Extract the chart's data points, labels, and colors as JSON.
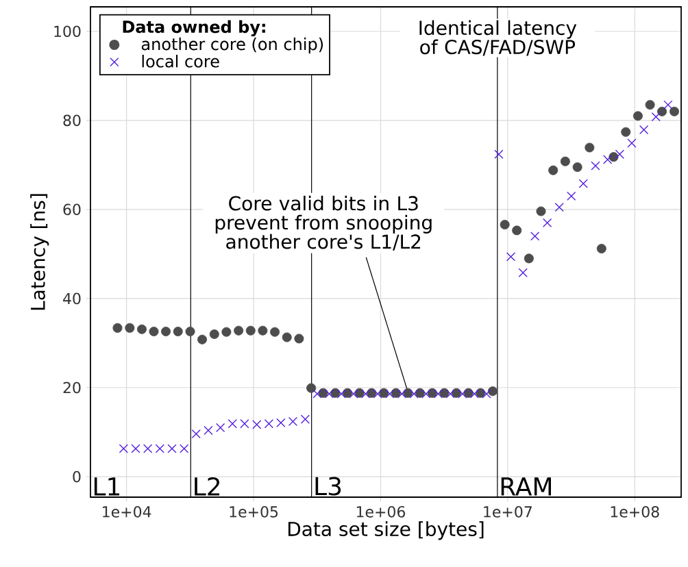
{
  "chart_data": {
    "type": "scatter",
    "xlabel": "Data set size [bytes]",
    "ylabel": "Latency [ns]",
    "legend_title": "Data owned by:",
    "log": "x",
    "grid": true,
    "legend": "top left",
    "xlim": [
      5200,
      232000000
    ],
    "ylim": [
      -4.6,
      105.5
    ],
    "xticks": [
      {
        "value": 10000,
        "label": "1e+04"
      },
      {
        "value": 100000,
        "label": "1e+05"
      },
      {
        "value": 1000000,
        "label": "1e+06"
      },
      {
        "value": 10000000,
        "label": "1e+07"
      },
      {
        "value": 100000000,
        "label": "1e+08"
      }
    ],
    "yticks": [
      0,
      20,
      40,
      60,
      80,
      100
    ],
    "series": [
      {
        "name": "another core (on chip)",
        "color": "#4d4d4d",
        "marker": "circle",
        "x": [
          8490,
          10600,
          13200,
          16400,
          20400,
          25400,
          31700,
          39400,
          49100,
          61100,
          76200,
          94800,
          118000,
          147000,
          183000,
          228000,
          284000,
          353000,
          440000,
          548000,
          682000,
          849000,
          1060000,
          1320000,
          1640000,
          2040000,
          2550000,
          3170000,
          3950000,
          4910000,
          6120000,
          7620000,
          9490000,
          11800000,
          14700000,
          18300000,
          22800000,
          28400000,
          35400000,
          44100000,
          54800000,
          68200000,
          85100000,
          106000000,
          132000000,
          164000000,
          205000000
        ],
        "values": [
          33.4,
          33.4,
          33.1,
          32.6,
          32.6,
          32.6,
          32.6,
          30.8,
          32.0,
          32.5,
          32.8,
          32.8,
          32.8,
          32.5,
          31.3,
          31.0,
          19.9,
          18.8,
          18.8,
          18.8,
          18.8,
          18.8,
          18.8,
          18.8,
          18.8,
          18.8,
          18.8,
          18.8,
          18.8,
          18.8,
          18.8,
          19.2,
          56.6,
          55.3,
          49.0,
          59.6,
          68.8,
          70.8,
          69.5,
          73.9,
          51.2,
          71.8,
          77.4,
          81.0,
          83.5,
          82.0,
          82.0
        ]
      },
      {
        "name": "local core",
        "color": "#5522dd",
        "marker": "cross",
        "x": [
          9480,
          11800,
          14700,
          18300,
          22800,
          28400,
          35300,
          44000,
          54800,
          68200,
          84900,
          106000,
          132000,
          164000,
          204000,
          255000,
          317000,
          394000,
          491000,
          612000,
          762000,
          948000,
          1180000,
          1470000,
          1830000,
          2280000,
          2840000,
          3540000,
          4410000,
          5480000,
          6820000,
          8510000,
          10600000,
          13200000,
          16400000,
          20500000,
          25500000,
          31700000,
          39400000,
          49100000,
          61200000,
          76200000,
          94800000,
          118000000,
          147000000,
          183000000
        ],
        "values": [
          6.3,
          6.3,
          6.3,
          6.3,
          6.3,
          6.3,
          9.6,
          10.4,
          11.0,
          11.9,
          11.9,
          11.7,
          11.9,
          12.1,
          12.4,
          12.9,
          18.6,
          18.6,
          18.6,
          18.6,
          18.6,
          18.6,
          18.6,
          18.6,
          18.6,
          18.6,
          18.6,
          18.6,
          18.6,
          18.6,
          18.6,
          72.4,
          49.4,
          45.8,
          54.0,
          57.0,
          60.5,
          63.0,
          65.8,
          69.8,
          71.2,
          72.4,
          74.9,
          77.9,
          80.8,
          83.5
        ]
      }
    ],
    "ref_lines": [
      {
        "axis": "x",
        "value": 32000,
        "label": "L2",
        "color": "#000000"
      },
      {
        "axis": "x",
        "value": 286000,
        "label": "L3",
        "color": "#000000"
      },
      {
        "axis": "x",
        "value": 8300000,
        "label": "RAM",
        "color": "#000000"
      }
    ],
    "annotations": [
      "L1",
      {
        "text": "Identical latency of CAS/FAD/SWP",
        "x": 8300000,
        "y": 98.5
      },
      {
        "text": "Core valid bits in L3 prevent from snooping another core's L1/L2",
        "x": 1660000,
        "y": 18.5
      }
    ]
  }
}
